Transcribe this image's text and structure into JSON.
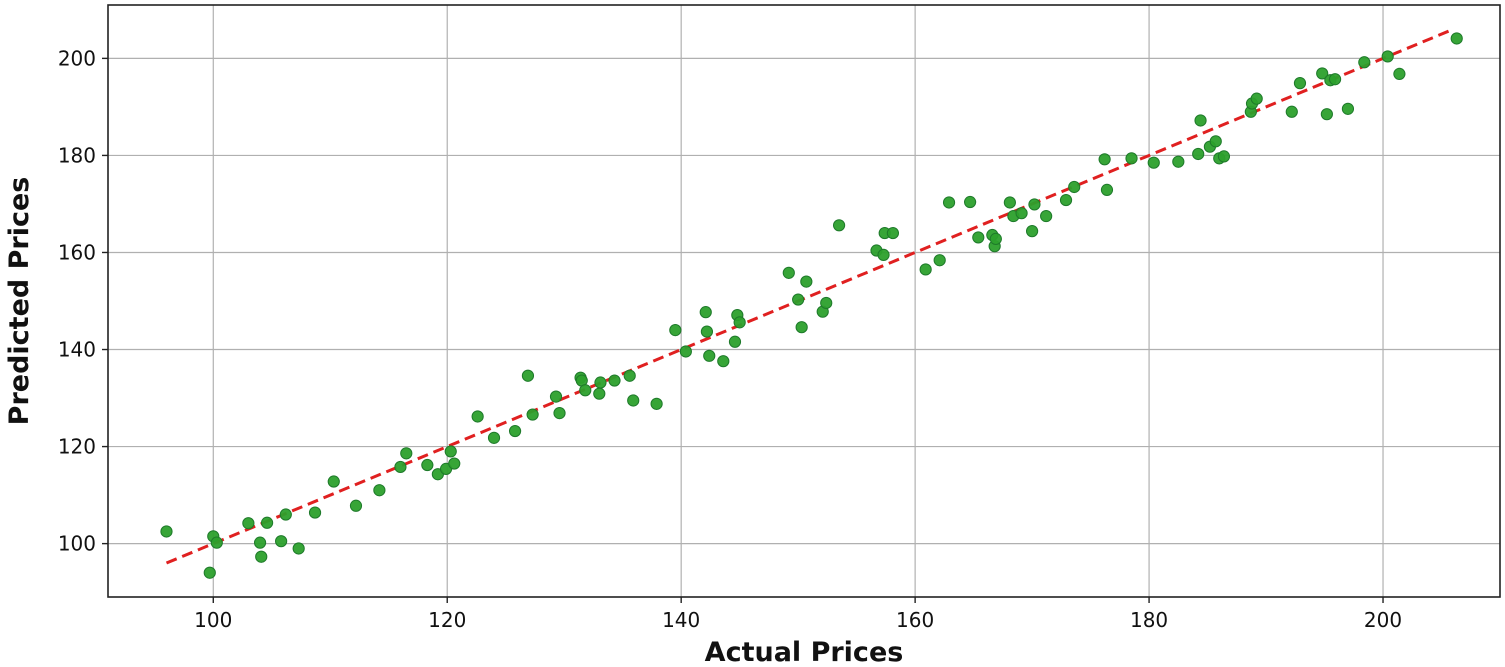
{
  "chart_data": {
    "type": "scatter",
    "title": "",
    "xlabel": "Actual Prices",
    "ylabel": "Predicted Prices",
    "xlim": [
      91,
      210
    ],
    "ylim": [
      89,
      211
    ],
    "xticks": [
      100,
      120,
      140,
      160,
      180,
      200
    ],
    "yticks": [
      100,
      120,
      140,
      160,
      180,
      200
    ],
    "grid": true,
    "legend": "none",
    "colors": {
      "points": "#2ca02c",
      "points_edge": "#1e7a2a",
      "trend": "#e02020"
    },
    "trend_line": {
      "style": "dashed",
      "x": [
        96,
        206
      ],
      "y": [
        96,
        206
      ]
    },
    "points": [
      [
        96,
        102.5
      ],
      [
        99.7,
        94
      ],
      [
        100,
        101.5
      ],
      [
        100.3,
        100.2
      ],
      [
        103,
        104.2
      ],
      [
        104,
        100.2
      ],
      [
        104.1,
        97.3
      ],
      [
        104.6,
        104.3
      ],
      [
        105.8,
        100.5
      ],
      [
        106.2,
        106
      ],
      [
        107.3,
        99
      ],
      [
        108.7,
        106.4
      ],
      [
        110.3,
        112.8
      ],
      [
        112.2,
        107.8
      ],
      [
        114.2,
        111
      ],
      [
        116,
        115.8
      ],
      [
        116.5,
        118.6
      ],
      [
        118.3,
        116.2
      ],
      [
        119.2,
        114.3
      ],
      [
        119.9,
        115.4
      ],
      [
        120.3,
        119
      ],
      [
        120.6,
        116.5
      ],
      [
        122.6,
        126.2
      ],
      [
        124,
        121.8
      ],
      [
        125.8,
        123.2
      ],
      [
        126.9,
        134.6
      ],
      [
        127.3,
        126.6
      ],
      [
        129.3,
        130.3
      ],
      [
        129.6,
        126.9
      ],
      [
        131.4,
        134.2
      ],
      [
        131.5,
        133.6
      ],
      [
        131.8,
        131.6
      ],
      [
        133,
        130.9
      ],
      [
        133.1,
        133.2
      ],
      [
        134.3,
        133.6
      ],
      [
        135.6,
        134.6
      ],
      [
        135.9,
        129.5
      ],
      [
        137.9,
        128.8
      ],
      [
        139.5,
        144
      ],
      [
        140.4,
        139.6
      ],
      [
        142.1,
        147.7
      ],
      [
        142.2,
        143.7
      ],
      [
        142.4,
        138.7
      ],
      [
        143.6,
        137.6
      ],
      [
        144.6,
        141.6
      ],
      [
        144.8,
        147.1
      ],
      [
        145,
        145.6
      ],
      [
        149.2,
        155.8
      ],
      [
        150,
        150.3
      ],
      [
        150.3,
        144.6
      ],
      [
        150.7,
        154
      ],
      [
        152.1,
        147.8
      ],
      [
        152.4,
        149.6
      ],
      [
        153.5,
        165.6
      ],
      [
        156.7,
        160.4
      ],
      [
        157.3,
        159.5
      ],
      [
        157.4,
        164
      ],
      [
        158.1,
        164
      ],
      [
        160.9,
        156.5
      ],
      [
        162.1,
        158.4
      ],
      [
        162.9,
        170.3
      ],
      [
        164.7,
        170.4
      ],
      [
        165.4,
        163.1
      ],
      [
        166.6,
        163.6
      ],
      [
        166.8,
        161.3
      ],
      [
        166.9,
        162.8
      ],
      [
        168.1,
        170.3
      ],
      [
        168.4,
        167.5
      ],
      [
        169.1,
        168.1
      ],
      [
        170,
        164.4
      ],
      [
        170.2,
        169.9
      ],
      [
        171.2,
        167.5
      ],
      [
        172.9,
        170.8
      ],
      [
        173.6,
        173.5
      ],
      [
        176.2,
        179.2
      ],
      [
        176.4,
        172.9
      ],
      [
        178.5,
        179.4
      ],
      [
        180.4,
        178.5
      ],
      [
        182.5,
        178.7
      ],
      [
        184.2,
        180.3
      ],
      [
        184.4,
        187.2
      ],
      [
        185.2,
        181.8
      ],
      [
        185.7,
        182.9
      ],
      [
        186,
        179.4
      ],
      [
        186.4,
        179.8
      ],
      [
        188.7,
        189
      ],
      [
        188.8,
        190.7
      ],
      [
        189.2,
        191.7
      ],
      [
        192.2,
        189
      ],
      [
        192.9,
        194.9
      ],
      [
        194.8,
        196.9
      ],
      [
        195.2,
        188.5
      ],
      [
        195.5,
        195.5
      ],
      [
        195.9,
        195.7
      ],
      [
        197,
        189.6
      ],
      [
        198.4,
        199.2
      ],
      [
        200.4,
        200.4
      ],
      [
        201.4,
        196.8
      ],
      [
        206.3,
        204.1
      ]
    ]
  }
}
